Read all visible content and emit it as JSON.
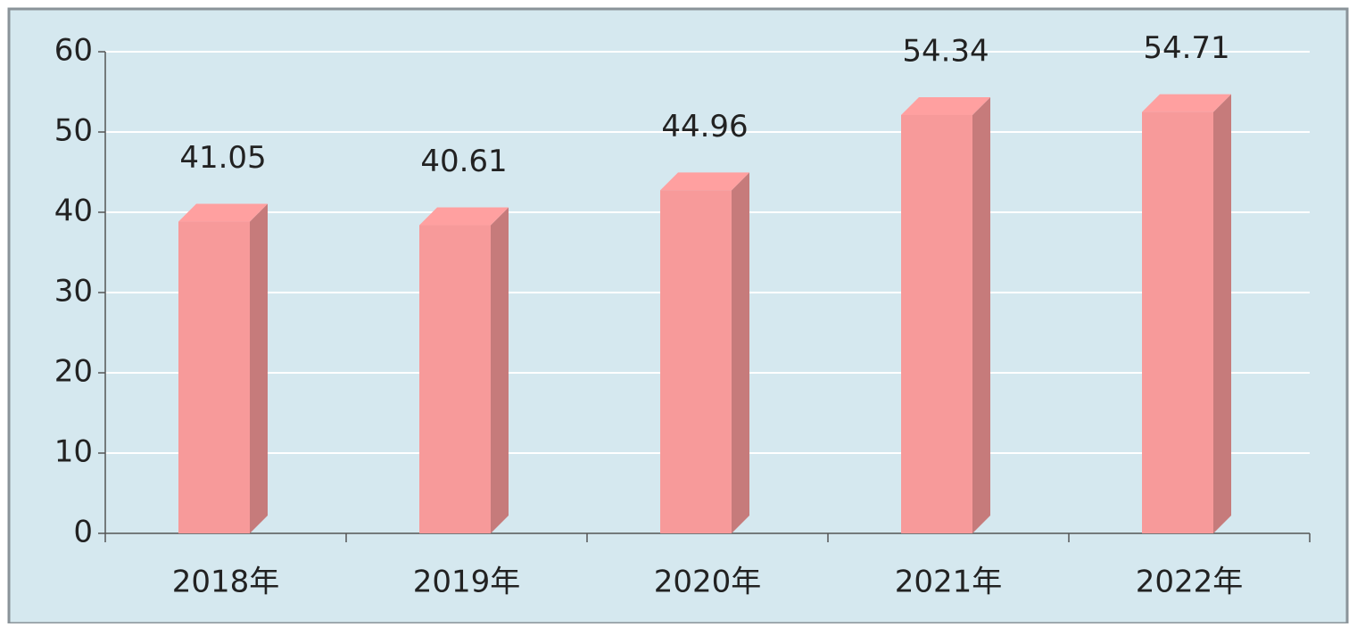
{
  "chart_data": {
    "type": "bar",
    "categories": [
      "2018年",
      "2019年",
      "2020年",
      "2021年",
      "2022年"
    ],
    "values": [
      41.05,
      40.61,
      44.96,
      54.34,
      54.71
    ],
    "color": "#f79a9a",
    "ylim": [
      0,
      60
    ],
    "yticks": [
      0,
      10,
      20,
      30,
      40,
      50,
      60
    ],
    "grid": true
  }
}
